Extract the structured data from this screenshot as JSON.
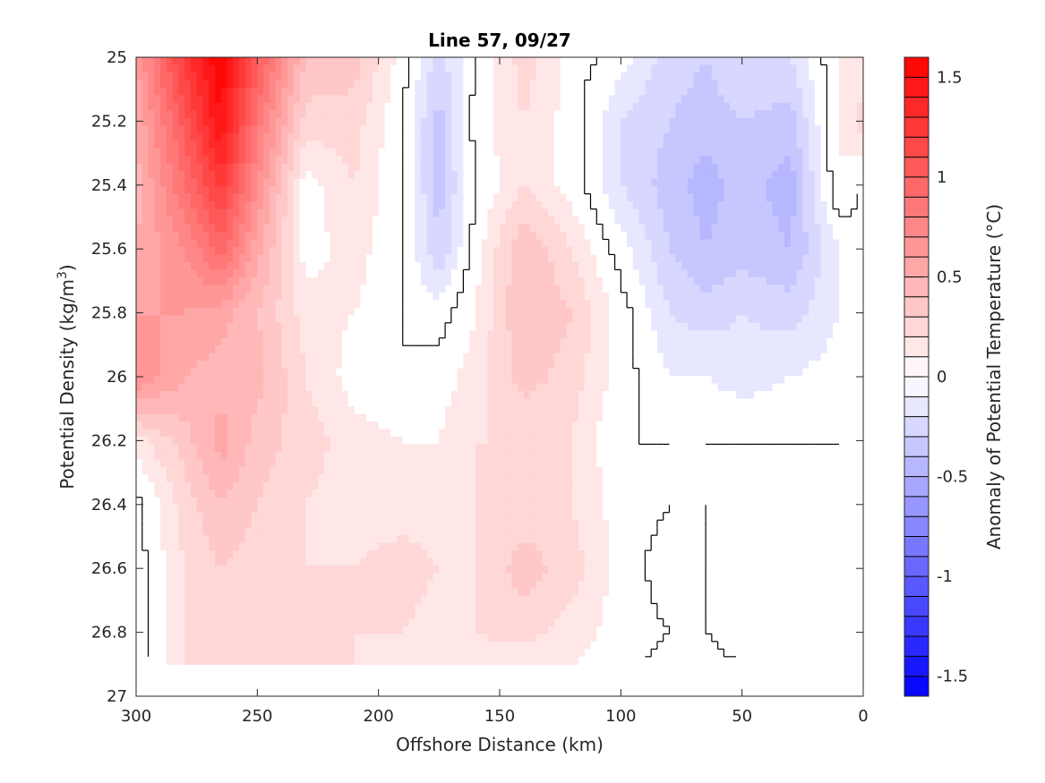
{
  "chart_data": {
    "type": "heatmap",
    "plot_kind": "filled contour section",
    "title": "Line 57, 09/27",
    "xlabel": "Offshore Distance (km)",
    "ylabel": "Potential Density (kg/m^3)",
    "ylabel_parts": {
      "main": "Potential Density (kg/m",
      "sup": "3",
      "close": ")"
    },
    "colorbar_label": "Anomaly of Potential Temperature (°C)",
    "xlim": [
      300,
      0
    ],
    "x_reversed": true,
    "ylim": [
      25,
      27
    ],
    "y_reversed": true,
    "xticks": [
      300,
      250,
      200,
      150,
      100,
      50,
      0
    ],
    "xtick_labels": [
      "300",
      "250",
      "200",
      "150",
      "100",
      "50",
      "0"
    ],
    "yticks": [
      25,
      25.2,
      25.4,
      25.6,
      25.8,
      26,
      26.2,
      26.4,
      26.6,
      26.8,
      27
    ],
    "ytick_labels": [
      "25",
      "25.2",
      "25.4",
      "25.6",
      "25.8",
      "26",
      "26.2",
      "26.4",
      "26.6",
      "26.8",
      "27"
    ],
    "clim": [
      -1.6,
      1.6
    ],
    "color_levels": 32,
    "colorbar_ticks": [
      1.5,
      1,
      0.5,
      0,
      -0.5,
      -1,
      -1.5
    ],
    "colorbar_tick_labels": [
      "1.5",
      "1",
      "0.5",
      "0",
      "-0.5",
      "-1",
      "-1.5"
    ],
    "colormap": {
      "negative": "#0000ff",
      "zero": "#ffffff",
      "positive": "#ff0000"
    },
    "zero_contour_color": "#000000",
    "data_extent": {
      "x": [
        300,
        0
      ],
      "y": [
        25,
        26.9
      ]
    },
    "x": [
      300,
      280,
      265,
      250,
      230,
      210,
      190,
      175,
      160,
      140,
      120,
      100,
      80,
      65,
      50,
      30,
      10,
      0
    ],
    "y": [
      25,
      25.2,
      25.4,
      25.6,
      25.8,
      26,
      26.2,
      26.4,
      26.6,
      26.8,
      26.9
    ],
    "values": [
      [
        0.6,
        1.25,
        1.6,
        1.05,
        0.4,
        0.35,
        0.05,
        -0.25,
        0.0,
        0.25,
        0.05,
        -0.05,
        -0.25,
        -0.3,
        -0.2,
        -0.2,
        0.1,
        0.1
      ],
      [
        0.5,
        1.05,
        1.5,
        0.85,
        0.25,
        0.25,
        0.0,
        -0.35,
        0.05,
        0.2,
        0.05,
        -0.2,
        -0.3,
        -0.35,
        -0.3,
        -0.35,
        0.1,
        0.25
      ],
      [
        0.45,
        0.9,
        1.25,
        0.7,
        0.05,
        0.2,
        0.0,
        -0.35,
        0.0,
        0.2,
        0.05,
        -0.2,
        -0.35,
        -0.45,
        -0.35,
        -0.45,
        0.1,
        0.0
      ],
      [
        0.5,
        0.7,
        0.95,
        0.55,
        0.05,
        0.15,
        0.0,
        -0.3,
        0.05,
        0.4,
        0.2,
        -0.05,
        -0.3,
        -0.4,
        -0.35,
        -0.4,
        -0.1,
        -0.05
      ],
      [
        0.6,
        0.6,
        0.55,
        0.4,
        0.15,
        0.1,
        0.0,
        -0.05,
        0.1,
        0.4,
        0.3,
        0.05,
        -0.2,
        -0.25,
        -0.2,
        -0.25,
        -0.1,
        -0.05
      ],
      [
        0.7,
        0.5,
        0.45,
        0.45,
        0.2,
        0.05,
        0.0,
        0.05,
        0.15,
        0.35,
        0.25,
        0.05,
        -0.1,
        -0.1,
        -0.15,
        -0.1,
        -0.05,
        0.0
      ],
      [
        0.15,
        0.35,
        0.55,
        0.35,
        0.25,
        0.15,
        0.1,
        0.1,
        0.2,
        0.2,
        0.2,
        0.0,
        0.0,
        0.0,
        0.0,
        0.0,
        0.0,
        0.0
      ],
      [
        -0.05,
        0.25,
        0.4,
        0.3,
        0.2,
        0.15,
        0.15,
        0.15,
        0.2,
        0.25,
        0.2,
        0.05,
        0.0,
        0.0,
        0.05,
        0.05,
        0.0,
        0.0
      ],
      [
        -0.05,
        0.2,
        0.3,
        0.25,
        0.2,
        0.2,
        0.25,
        0.2,
        0.2,
        0.35,
        0.25,
        0.05,
        -0.05,
        0.0,
        0.1,
        0.1,
        0.0,
        0.0
      ],
      [
        -0.05,
        0.2,
        0.2,
        0.2,
        0.25,
        0.2,
        0.2,
        0.15,
        0.2,
        0.25,
        0.15,
        0.05,
        0.0,
        0.0,
        0.1,
        0.05,
        0.0,
        0.0
      ],
      [
        -0.05,
        0.2,
        0.2,
        0.2,
        0.2,
        0.2,
        0.15,
        0.15,
        0.15,
        0.1,
        0.1,
        0.05,
        -0.05,
        -0.05,
        0.0,
        0.0,
        0.0,
        0.0
      ]
    ]
  }
}
